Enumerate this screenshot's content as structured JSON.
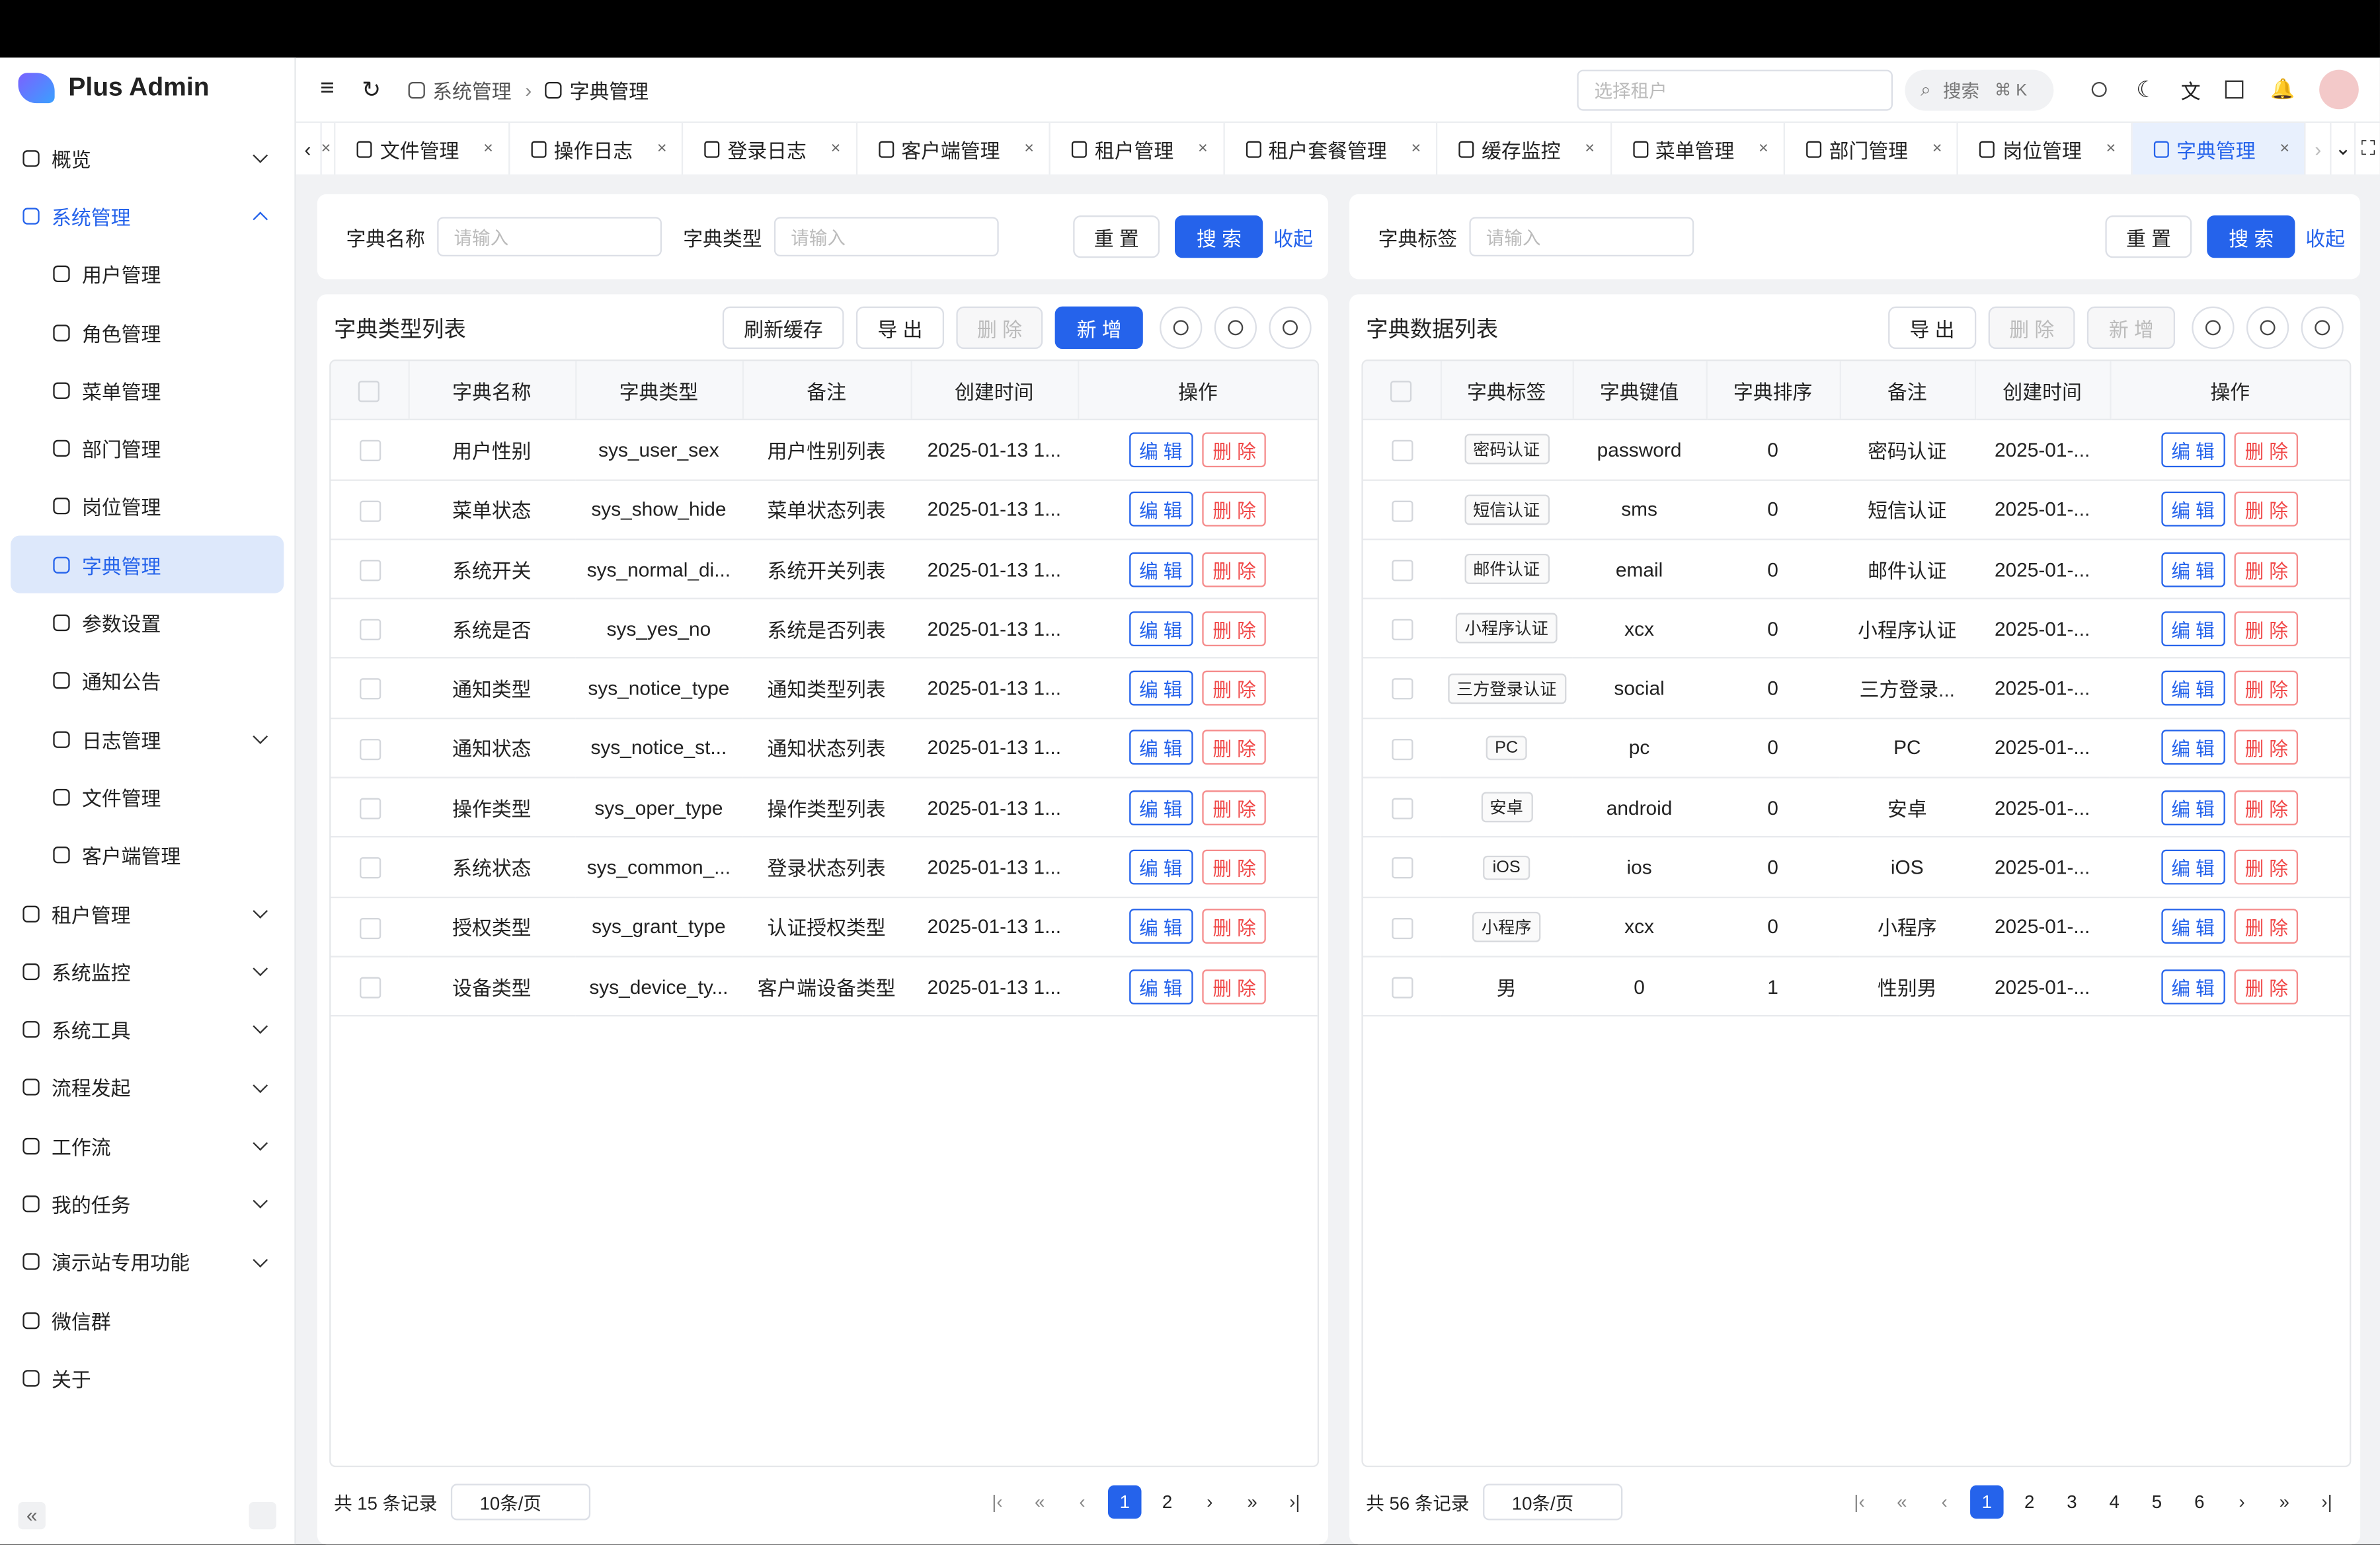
{
  "header": {
    "logo": "Plus Admin",
    "breadcrumb": [
      "系统管理",
      "字典管理"
    ],
    "tenant_placeholder": "选择租户",
    "search": "搜索",
    "shortcut": "⌘ K"
  },
  "sidebar": {
    "items": [
      {
        "label": "概览",
        "expand": true
      },
      {
        "label": "系统管理",
        "expand": true,
        "open": true,
        "children": [
          {
            "label": "用户管理"
          },
          {
            "label": "角色管理"
          },
          {
            "label": "菜单管理"
          },
          {
            "label": "部门管理"
          },
          {
            "label": "岗位管理"
          },
          {
            "label": "字典管理",
            "active": true
          },
          {
            "label": "参数设置"
          },
          {
            "label": "通知公告"
          },
          {
            "label": "日志管理",
            "expand": true
          },
          {
            "label": "文件管理"
          },
          {
            "label": "客户端管理"
          }
        ]
      },
      {
        "label": "租户管理",
        "expand": true
      },
      {
        "label": "系统监控",
        "expand": true
      },
      {
        "label": "系统工具",
        "expand": true
      },
      {
        "label": "流程发起",
        "expand": true
      },
      {
        "label": "工作流",
        "expand": true
      },
      {
        "label": "我的任务",
        "expand": true
      },
      {
        "label": "演示站专用功能",
        "expand": true
      },
      {
        "label": "微信群"
      },
      {
        "label": "关于"
      }
    ]
  },
  "tabs": [
    {
      "label": "文件管理"
    },
    {
      "label": "操作日志"
    },
    {
      "label": "登录日志"
    },
    {
      "label": "客户端管理"
    },
    {
      "label": "租户管理"
    },
    {
      "label": "租户套餐管理"
    },
    {
      "label": "缓存监控"
    },
    {
      "label": "菜单管理"
    },
    {
      "label": "部门管理"
    },
    {
      "label": "岗位管理"
    },
    {
      "label": "字典管理",
      "active": true
    }
  ],
  "left": {
    "filters": [
      {
        "label": "字典名称",
        "placeholder": "请输入"
      },
      {
        "label": "字典类型",
        "placeholder": "请输入"
      }
    ],
    "reset": "重 置",
    "search": "搜 索",
    "collapse": "收起",
    "title": "字典类型列表",
    "toolbar": [
      {
        "label": "刷新缓存"
      },
      {
        "label": "导 出"
      },
      {
        "label": "删 除",
        "disabled": true
      },
      {
        "label": "新 增",
        "primary": true
      }
    ],
    "columns": [
      "字典名称",
      "字典类型",
      "备注",
      "创建时间",
      "操作"
    ],
    "rows": [
      [
        "用户性别",
        "sys_user_sex",
        "用户性别列表",
        "2025-01-13 1..."
      ],
      [
        "菜单状态",
        "sys_show_hide",
        "菜单状态列表",
        "2025-01-13 1..."
      ],
      [
        "系统开关",
        "sys_normal_di...",
        "系统开关列表",
        "2025-01-13 1..."
      ],
      [
        "系统是否",
        "sys_yes_no",
        "系统是否列表",
        "2025-01-13 1..."
      ],
      [
        "通知类型",
        "sys_notice_type",
        "通知类型列表",
        "2025-01-13 1..."
      ],
      [
        "通知状态",
        "sys_notice_st...",
        "通知状态列表",
        "2025-01-13 1..."
      ],
      [
        "操作类型",
        "sys_oper_type",
        "操作类型列表",
        "2025-01-13 1..."
      ],
      [
        "系统状态",
        "sys_common_...",
        "登录状态列表",
        "2025-01-13 1..."
      ],
      [
        "授权类型",
        "sys_grant_type",
        "认证授权类型",
        "2025-01-13 1..."
      ],
      [
        "设备类型",
        "sys_device_ty...",
        "客户端设备类型",
        "2025-01-13 1..."
      ]
    ],
    "edit": "编 辑",
    "delete": "删 除",
    "total": "共 15 条记录",
    "page_size": "10条/页",
    "pages": [
      "1",
      "2"
    ]
  },
  "right": {
    "filters": [
      {
        "label": "字典标签",
        "placeholder": "请输入"
      }
    ],
    "reset": "重 置",
    "search": "搜 索",
    "collapse": "收起",
    "title": "字典数据列表",
    "toolbar": [
      {
        "label": "导 出"
      },
      {
        "label": "删 除",
        "disabled": true
      },
      {
        "label": "新 增",
        "disabled": true
      }
    ],
    "columns": [
      "字典标签",
      "字典键值",
      "字典排序",
      "备注",
      "创建时间",
      "操作"
    ],
    "tagged_rows": 9,
    "rows": [
      [
        "密码认证",
        "password",
        "0",
        "密码认证",
        "2025-01-..."
      ],
      [
        "短信认证",
        "sms",
        "0",
        "短信认证",
        "2025-01-..."
      ],
      [
        "邮件认证",
        "email",
        "0",
        "邮件认证",
        "2025-01-..."
      ],
      [
        "小程序认证",
        "xcx",
        "0",
        "小程序认证",
        "2025-01-..."
      ],
      [
        "三方登录认证",
        "social",
        "0",
        "三方登录...",
        "2025-01-..."
      ],
      [
        "PC",
        "pc",
        "0",
        "PC",
        "2025-01-..."
      ],
      [
        "安卓",
        "android",
        "0",
        "安卓",
        "2025-01-..."
      ],
      [
        "iOS",
        "ios",
        "0",
        "iOS",
        "2025-01-..."
      ],
      [
        "小程序",
        "xcx",
        "0",
        "小程序",
        "2025-01-..."
      ],
      [
        "男",
        "0",
        "1",
        "性别男",
        "2025-01-..."
      ]
    ],
    "edit": "编 辑",
    "delete": "删 除",
    "total": "共 56 条记录",
    "page_size": "10条/页",
    "pages": [
      "1",
      "2",
      "3",
      "4",
      "5",
      "6"
    ]
  }
}
